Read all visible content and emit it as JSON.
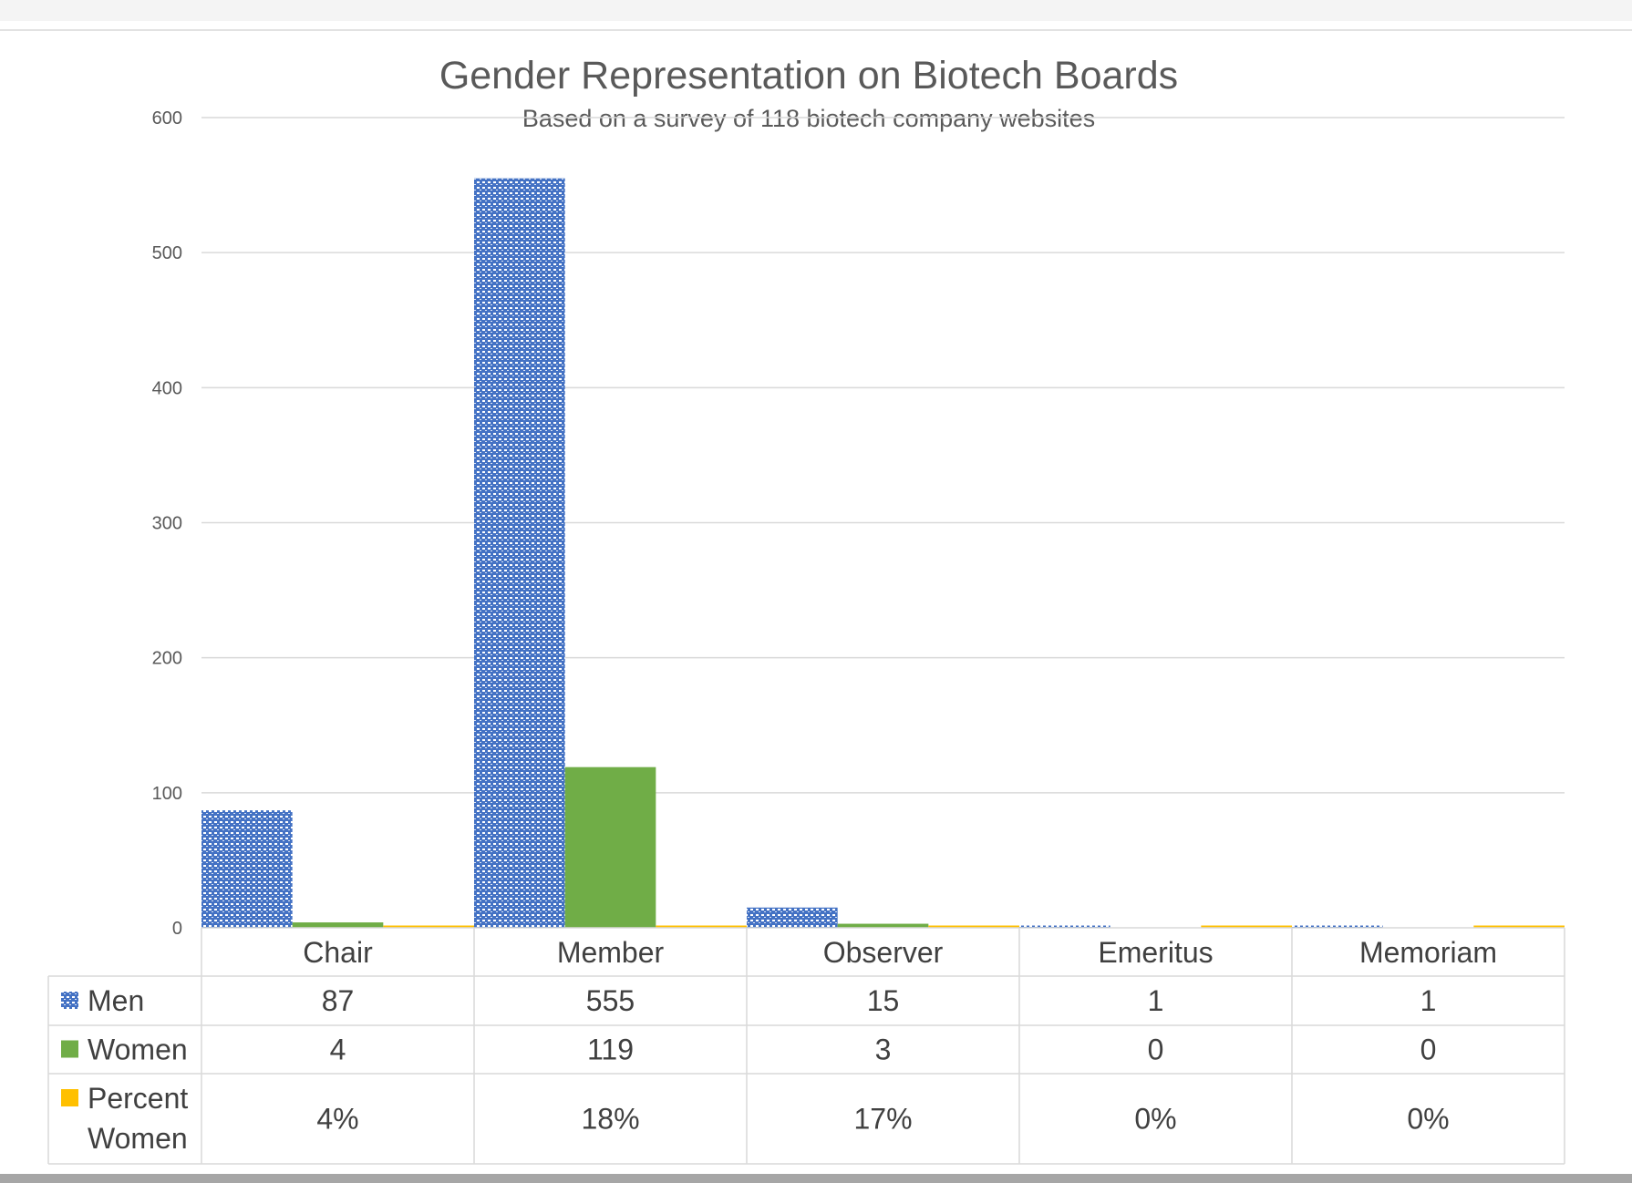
{
  "chart_data": {
    "type": "bar",
    "title": "Gender Representation on Biotech Boards",
    "subtitle": "Based on a survey of 118 biotech company websites",
    "categories": [
      "Chair",
      "Member",
      "Observer",
      "Emeritus",
      "Memoriam"
    ],
    "series": [
      {
        "name": "Men",
        "values": [
          87,
          555,
          15,
          1,
          1
        ],
        "labels": [
          "87",
          "555",
          "15",
          "1",
          "1"
        ],
        "color": "#4472c4",
        "pattern": "dotted"
      },
      {
        "name": "Women",
        "values": [
          4,
          119,
          3,
          0,
          0
        ],
        "labels": [
          "4",
          "119",
          "3",
          "0",
          "0"
        ],
        "color": "#70ad47"
      },
      {
        "name": "Percent Women",
        "values": [
          0.04,
          0.18,
          0.17,
          0,
          0
        ],
        "labels": [
          "4%",
          "18%",
          "17%",
          "0%",
          "0%"
        ],
        "color": "#ffc000"
      }
    ],
    "yticks": [
      "0",
      "100",
      "200",
      "300",
      "400",
      "500",
      "600"
    ],
    "ylim": [
      0,
      600
    ],
    "grid": true,
    "legend": "data-table"
  }
}
